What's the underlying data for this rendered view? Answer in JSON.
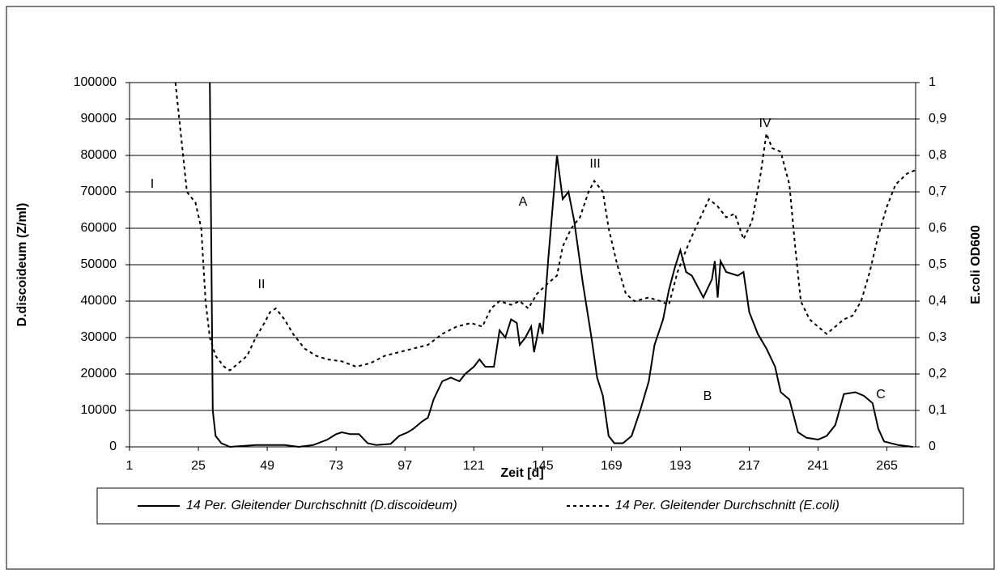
{
  "chart_data": {
    "type": "line",
    "xlabel": "Zeit [d]",
    "ylabel": "D.discoideum (Z/ml)",
    "y2label": "E.coli OD600",
    "xlim": [
      1,
      275
    ],
    "xticks": [
      1,
      25,
      49,
      73,
      97,
      121,
      145,
      169,
      193,
      217,
      241,
      265
    ],
    "ylim": [
      0,
      100000
    ],
    "yticks": [
      0,
      10000,
      20000,
      30000,
      40000,
      50000,
      60000,
      70000,
      80000,
      90000,
      100000
    ],
    "y2lim": [
      0,
      1
    ],
    "y2ticks": [
      0,
      {
        "value": 0.1,
        "label": "0,1"
      },
      {
        "value": 0.2,
        "label": "0,2"
      },
      {
        "value": 0.3,
        "label": "0,3"
      },
      {
        "value": 0.4,
        "label": "0,4"
      },
      {
        "value": 0.5,
        "label": "0,5"
      },
      {
        "value": 0.6,
        "label": "0,6"
      },
      {
        "value": 0.7,
        "label": "0,7"
      },
      {
        "value": 0.8,
        "label": "0,8"
      },
      {
        "value": 0.9,
        "label": "0,9"
      },
      1
    ],
    "grid": true,
    "legend": "bottom",
    "annotations": [
      "I",
      "II",
      "III",
      "IV",
      "A",
      "B",
      "C"
    ],
    "series": [
      {
        "name": "14 Per. Gleitender Durchschnitt (D.discoideum)",
        "color": "#000000",
        "dash": false,
        "x": [
          29,
          30,
          31,
          33,
          36,
          45,
          55,
          60,
          65,
          70,
          73,
          75,
          78,
          81,
          84,
          87,
          92,
          95,
          98,
          100,
          103,
          105,
          107,
          110,
          113,
          116,
          118,
          121,
          123,
          125,
          128,
          130,
          132,
          134,
          136,
          137,
          139,
          141,
          142,
          144,
          145,
          147,
          150,
          152,
          154,
          156,
          159,
          162,
          164,
          166,
          168,
          170,
          173,
          176,
          179,
          182,
          184,
          187,
          189,
          191,
          193,
          195,
          197,
          199,
          201,
          204,
          205,
          206,
          207,
          209,
          213,
          215,
          217,
          220,
          223,
          226,
          228,
          231,
          234,
          237,
          241,
          244,
          247,
          250,
          254,
          257,
          260,
          262,
          264,
          269,
          274
        ],
        "values": [
          100000,
          10000,
          3000,
          1000,
          0,
          500,
          500,
          0,
          500,
          2000,
          3500,
          4000,
          3500,
          3500,
          1000,
          500,
          800,
          3000,
          4000,
          5000,
          7000,
          8000,
          13000,
          18000,
          19000,
          18000,
          20000,
          22000,
          24000,
          22000,
          22000,
          32000,
          30000,
          35000,
          34000,
          28000,
          30000,
          33000,
          26000,
          34000,
          31000,
          52000,
          80000,
          68000,
          70000,
          62000,
          45000,
          30000,
          19000,
          14000,
          3000,
          1000,
          1000,
          3000,
          10000,
          18000,
          28000,
          35000,
          43000,
          49000,
          54000,
          48000,
          47000,
          44000,
          41000,
          46000,
          51000,
          41000,
          51000,
          48000,
          47000,
          48000,
          37000,
          31000,
          27000,
          22000,
          15000,
          13000,
          4000,
          2500,
          2000,
          3000,
          6000,
          14500,
          15000,
          14000,
          12000,
          5000,
          1500,
          500,
          0
        ]
      },
      {
        "name": "14 Per. Gleitender Durchschnitt (E.coli)",
        "color": "#000000",
        "dash": true,
        "axis": "y2",
        "x": [
          17,
          19,
          21,
          24,
          26,
          27.5,
          29,
          31,
          34,
          36,
          39,
          42,
          45,
          48,
          50,
          52,
          55,
          58,
          62,
          66,
          70,
          75,
          80,
          85,
          90,
          95,
          100,
          105,
          110,
          115,
          120,
          124,
          127,
          130,
          134,
          137,
          140,
          143,
          147,
          150,
          152,
          155,
          158,
          161,
          163,
          166,
          168,
          171,
          174,
          177,
          182,
          186,
          189,
          192,
          196,
          200,
          203,
          206,
          209,
          212,
          215,
          218,
          221,
          223,
          225,
          228,
          231,
          233,
          235,
          238,
          241,
          244,
          247,
          250,
          253,
          256,
          259,
          262,
          265,
          268,
          272,
          275
        ],
        "values": [
          1.0,
          0.85,
          0.7,
          0.67,
          0.6,
          0.4,
          0.3,
          0.25,
          0.22,
          0.21,
          0.23,
          0.25,
          0.3,
          0.34,
          0.37,
          0.38,
          0.35,
          0.31,
          0.27,
          0.25,
          0.24,
          0.235,
          0.22,
          0.23,
          0.25,
          0.26,
          0.27,
          0.28,
          0.31,
          0.33,
          0.34,
          0.33,
          0.38,
          0.4,
          0.39,
          0.4,
          0.38,
          0.42,
          0.45,
          0.47,
          0.55,
          0.6,
          0.63,
          0.7,
          0.73,
          0.7,
          0.6,
          0.5,
          0.42,
          0.4,
          0.41,
          0.4,
          0.39,
          0.48,
          0.56,
          0.63,
          0.68,
          0.66,
          0.63,
          0.64,
          0.57,
          0.62,
          0.75,
          0.86,
          0.82,
          0.81,
          0.72,
          0.55,
          0.4,
          0.35,
          0.33,
          0.31,
          0.33,
          0.35,
          0.36,
          0.4,
          0.48,
          0.58,
          0.66,
          0.72,
          0.75,
          0.76
        ]
      }
    ]
  }
}
